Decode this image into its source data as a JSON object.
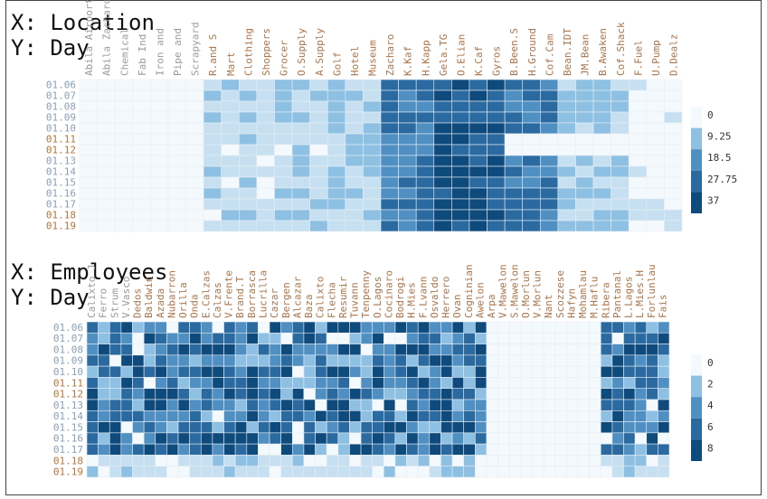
{
  "palette": [
    "#f4f9fd",
    "#c6dff1",
    "#8dc0e3",
    "#4f8fc2",
    "#2b6aa0",
    "#0f4a7c"
  ],
  "chart_data": [
    {
      "type": "heatmap",
      "title_x": "X: Location",
      "title_y": "Y: Day",
      "x": [
        "Abila Airport",
        "Abila Zacharo",
        "Chemical",
        "Fab Ind",
        "Iron and",
        "Pipe and",
        "Scrapyard",
        "R.and S",
        "Mart",
        "Clothing",
        "Shoppers",
        "Grocer",
        "O.Supply",
        "A.Supply",
        "Golf",
        "Hotel",
        "Museum",
        "Zacharo",
        "K.Kaf",
        "H.Kapp",
        "Gela.TG",
        "O.Elian",
        "K.Caf",
        "Gyros",
        "B.Been.S",
        "H.Ground",
        "Cof.Cam",
        "Bean.IDT",
        "JM.Bean",
        "B.Awaken",
        "Cof.Shack",
        "F.Fuel",
        "U.Pump",
        "D.Dealz"
      ],
      "y": [
        "01.06",
        "01.07",
        "01.08",
        "01.09",
        "01.10",
        "01.11",
        "01.12",
        "01.13",
        "01.14",
        "01.15",
        "01.16",
        "01.17",
        "01.18",
        "01.19"
      ],
      "weekend_days": [
        "01.11",
        "01.12",
        "01.18",
        "01.19"
      ],
      "legend": [
        0,
        9.25,
        18.5,
        27.75,
        37
      ]
    },
    {
      "type": "heatmap",
      "title_x": "X: Employees",
      "title_y": "Y: Day",
      "x": [
        "Calixto J",
        "Ferro",
        "Strum",
        "V.Vasco",
        "Dedos",
        "Baldwin",
        "Azada",
        "Nubarron",
        "Orilla",
        "Onda",
        "E.Calzas",
        "Calzas",
        "V.Frente",
        "Brand.T",
        "Borrasca",
        "Lucrilla",
        "Cazar",
        "Bergen",
        "Alcazar",
        "Baza",
        "Calixto",
        "Flecha",
        "Resumir",
        "Tuvann",
        "Tenpenny",
        "O.Lagos",
        "Cocinaro",
        "Bodrogi",
        "H.Mies",
        "F.Lvann",
        "Osvaldo",
        "Herrero",
        "Ovan",
        "Cogninian",
        "Awelon",
        "Arpa",
        "V.Mawelon",
        "S.Mawelon",
        "O.Morlun",
        "V.Morlun",
        "Nant",
        "Scozzese",
        "Hafyn",
        "Mohamlau",
        "M.Haflu",
        "Ribera",
        "Pantanal",
        "L.Lagos",
        "L.Mies.H",
        "Forlunlau",
        "Fais"
      ],
      "y": [
        "01.06",
        "01.07",
        "01.08",
        "01.09",
        "01.10",
        "01.11",
        "01.12",
        "01.13",
        "01.14",
        "01.15",
        "01.16",
        "01.17",
        "01.18",
        "01.19"
      ],
      "weekend_days": [
        "01.11",
        "01.12",
        "01.18",
        "01.19"
      ],
      "legend": [
        0,
        2,
        4,
        6,
        8
      ]
    }
  ]
}
